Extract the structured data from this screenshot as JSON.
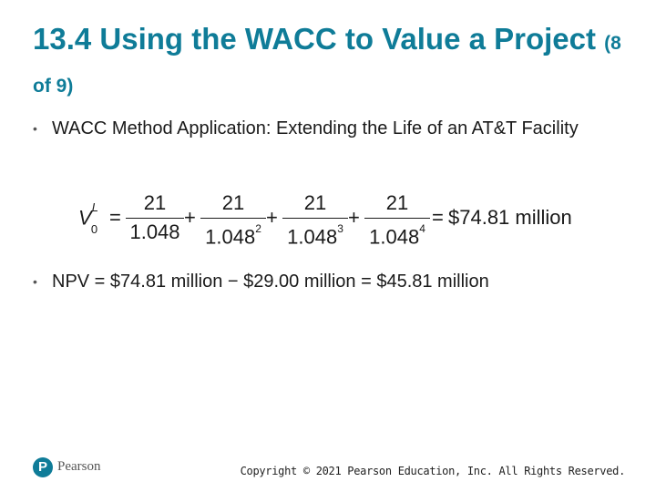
{
  "slide": {
    "title_main": "13.4 Using the WACC to Value a Project",
    "title_sub": "(8 of 9)"
  },
  "bullets": [
    "WACC Method Application: Extending the Life of an AT&T Facility",
    "NPV = $74.81 million − $29.00 million = $45.81 million"
  ],
  "formula": {
    "lhs_var": "V",
    "lhs_sup": "L",
    "lhs_sub": "0",
    "equals": "=",
    "plus": "+",
    "terms": [
      {
        "numerator": "21",
        "denominator": "1.048",
        "exponent": ""
      },
      {
        "numerator": "21",
        "denominator": "1.048",
        "exponent": "2"
      },
      {
        "numerator": "21",
        "denominator": "1.048",
        "exponent": "3"
      },
      {
        "numerator": "21",
        "denominator": "1.048",
        "exponent": "4"
      }
    ],
    "result": "$74.81 million"
  },
  "footer": {
    "logo_letter": "P",
    "logo_name": "Pearson",
    "copyright": "Copyright © 2021 Pearson Education, Inc. All Rights Reserved."
  },
  "colors": {
    "title": "#0f7c98",
    "logo": "#0f7c98"
  }
}
